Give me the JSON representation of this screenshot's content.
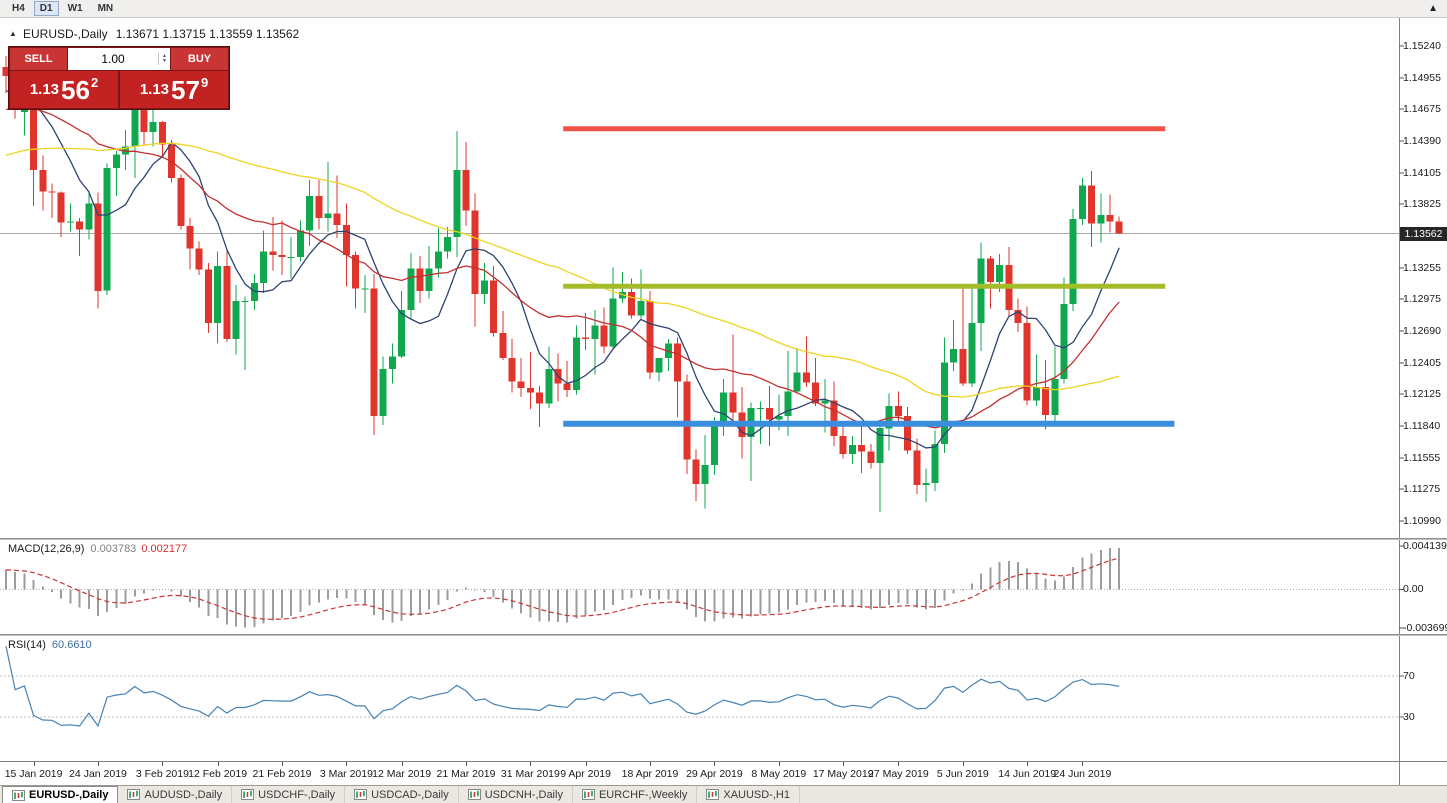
{
  "toolbar": {
    "timeframes": [
      {
        "label": "H4",
        "active": false
      },
      {
        "label": "D1",
        "active": true
      },
      {
        "label": "W1",
        "active": false
      },
      {
        "label": "MN",
        "active": false
      }
    ]
  },
  "icons": {
    "panel_collapse": "▲",
    "volume_spin_up": "▲",
    "volume_spin_down": "▼",
    "toolbar_scroll_up": "▲"
  },
  "chart_header": {
    "symbol": "EURUSD-,Daily",
    "ohlc": "1.13671 1.13715 1.13559 1.13562"
  },
  "one_click": {
    "sell_label": "SELL",
    "buy_label": "BUY",
    "volume": "1.00",
    "sell_price": {
      "base": "1.13",
      "pips": "56",
      "frac": "2"
    },
    "buy_price": {
      "base": "1.13",
      "pips": "57",
      "frac": "9"
    }
  },
  "price_axis": {
    "labels": [
      "1.15240",
      "1.14955",
      "1.14675",
      "1.14390",
      "1.14105",
      "1.13825",
      "1.13255",
      "1.12975",
      "1.12690",
      "1.12405",
      "1.12125",
      "1.11840",
      "1.11555",
      "1.11275",
      "1.10990"
    ],
    "current": "1.13562"
  },
  "macd_panel": {
    "name": "MACD(12,26,9)",
    "values": [
      "0.003783",
      "0.002177"
    ],
    "axis": [
      "0.004139",
      "0.00",
      "-0.003699"
    ]
  },
  "rsi_panel": {
    "name": "RSI(14)",
    "value": "60.6610",
    "levels": [
      "70",
      "30"
    ]
  },
  "date_axis": {
    "labels": [
      {
        "t": "15 Jan 2019",
        "i": 3
      },
      {
        "t": "24 Jan 2019",
        "i": 10
      },
      {
        "t": "3 Feb 2019",
        "i": 17
      },
      {
        "t": "12 Feb 2019",
        "i": 23
      },
      {
        "t": "21 Feb 2019",
        "i": 30
      },
      {
        "t": "3 Mar 2019",
        "i": 37
      },
      {
        "t": "12 Mar 2019",
        "i": 43
      },
      {
        "t": "21 Mar 2019",
        "i": 50
      },
      {
        "t": "31 Mar 2019",
        "i": 57
      },
      {
        "t": "9 Apr 2019",
        "i": 63
      },
      {
        "t": "18 Apr 2019",
        "i": 70
      },
      {
        "t": "29 Apr 2019",
        "i": 77
      },
      {
        "t": "8 May 2019",
        "i": 84
      },
      {
        "t": "17 May 2019",
        "i": 91
      },
      {
        "t": "27 May 2019",
        "i": 97
      },
      {
        "t": "5 Jun 2019",
        "i": 104
      },
      {
        "t": "14 Jun 2019",
        "i": 111
      },
      {
        "t": "24 Jun 2019",
        "i": 117
      }
    ]
  },
  "tabs": [
    {
      "label": "EURUSD-,Daily",
      "active": true
    },
    {
      "label": "AUDUSD-,Daily",
      "active": false
    },
    {
      "label": "USDCHF-,Daily",
      "active": false
    },
    {
      "label": "USDCAD-,Daily",
      "active": false
    },
    {
      "label": "USDCNH-,Daily",
      "active": false
    },
    {
      "label": "EURCHF-,Weekly",
      "active": false
    },
    {
      "label": "XAUUSD-,H1",
      "active": false
    }
  ],
  "chart_data": {
    "type": "candlestick",
    "symbol": "EURUSD-",
    "timeframe": "Daily",
    "current_price": 1.13562,
    "price_max": 1.1524,
    "price_min": 1.1099,
    "colors": {
      "bull": "#10A74F",
      "bear": "#E0352C",
      "current_line": "#A9A9A9"
    },
    "candles": [
      [
        1.1505,
        1.1515,
        1.1482,
        1.1497
      ],
      [
        1.1497,
        1.15,
        1.1459,
        1.1467
      ],
      [
        1.1465,
        1.1482,
        1.1444,
        1.1473
      ],
      [
        1.1473,
        1.149,
        1.1381,
        1.1413
      ],
      [
        1.1413,
        1.1426,
        1.1377,
        1.1394
      ],
      [
        1.1394,
        1.1401,
        1.137,
        1.1393
      ],
      [
        1.1393,
        1.1394,
        1.1353,
        1.1366
      ],
      [
        1.1366,
        1.1383,
        1.1358,
        1.1367
      ],
      [
        1.1367,
        1.137,
        1.1336,
        1.136
      ],
      [
        1.136,
        1.1394,
        1.1351,
        1.1383
      ],
      [
        1.1383,
        1.1393,
        1.1289,
        1.1305
      ],
      [
        1.1305,
        1.1419,
        1.1301,
        1.1415
      ],
      [
        1.1415,
        1.143,
        1.139,
        1.1427
      ],
      [
        1.1427,
        1.1449,
        1.1413,
        1.1434
      ],
      [
        1.1434,
        1.1502,
        1.1406,
        1.1481
      ],
      [
        1.1481,
        1.1514,
        1.1436,
        1.1447
      ],
      [
        1.1447,
        1.1488,
        1.1434,
        1.1456
      ],
      [
        1.1456,
        1.1457,
        1.1424,
        1.1436
      ],
      [
        1.1436,
        1.144,
        1.1402,
        1.1406
      ],
      [
        1.1406,
        1.1409,
        1.136,
        1.1363
      ],
      [
        1.1363,
        1.137,
        1.1324,
        1.1343
      ],
      [
        1.1343,
        1.1349,
        1.1319,
        1.1324
      ],
      [
        1.1324,
        1.133,
        1.1267,
        1.1276
      ],
      [
        1.1276,
        1.134,
        1.1258,
        1.1327
      ],
      [
        1.1327,
        1.1341,
        1.1259,
        1.1262
      ],
      [
        1.1262,
        1.131,
        1.1248,
        1.1296
      ],
      [
        1.1296,
        1.13,
        1.1234,
        1.1296
      ],
      [
        1.1296,
        1.132,
        1.1288,
        1.1312
      ],
      [
        1.1312,
        1.1359,
        1.1303,
        1.134
      ],
      [
        1.134,
        1.1371,
        1.1323,
        1.1337
      ],
      [
        1.1337,
        1.1368,
        1.1319,
        1.1335
      ],
      [
        1.1335,
        1.1353,
        1.1316,
        1.1335
      ],
      [
        1.1335,
        1.1368,
        1.1331,
        1.1359
      ],
      [
        1.1359,
        1.1404,
        1.1345,
        1.139
      ],
      [
        1.139,
        1.1404,
        1.136,
        1.137
      ],
      [
        1.137,
        1.142,
        1.1358,
        1.1374
      ],
      [
        1.1374,
        1.1408,
        1.1352,
        1.1364
      ],
      [
        1.1364,
        1.1383,
        1.1309,
        1.1337
      ],
      [
        1.1337,
        1.134,
        1.1289,
        1.1307
      ],
      [
        1.1307,
        1.1319,
        1.1285,
        1.1307
      ],
      [
        1.1307,
        1.132,
        1.1176,
        1.1193
      ],
      [
        1.1193,
        1.1246,
        1.1185,
        1.1235
      ],
      [
        1.1235,
        1.1258,
        1.1222,
        1.1246
      ],
      [
        1.1246,
        1.1305,
        1.1245,
        1.1288
      ],
      [
        1.1288,
        1.1339,
        1.128,
        1.1325
      ],
      [
        1.1325,
        1.1336,
        1.1294,
        1.1305
      ],
      [
        1.1305,
        1.1345,
        1.1298,
        1.1325
      ],
      [
        1.1325,
        1.1361,
        1.1317,
        1.134
      ],
      [
        1.134,
        1.1362,
        1.1334,
        1.1353
      ],
      [
        1.1353,
        1.1448,
        1.1335,
        1.1413
      ],
      [
        1.1413,
        1.1438,
        1.1363,
        1.1377
      ],
      [
        1.1377,
        1.1392,
        1.1273,
        1.1302
      ],
      [
        1.1302,
        1.133,
        1.1293,
        1.1314
      ],
      [
        1.1314,
        1.1327,
        1.1264,
        1.1267
      ],
      [
        1.1267,
        1.1287,
        1.1243,
        1.1245
      ],
      [
        1.1245,
        1.1262,
        1.1214,
        1.1224
      ],
      [
        1.1224,
        1.1245,
        1.121,
        1.1218
      ],
      [
        1.1218,
        1.125,
        1.1199,
        1.1214
      ],
      [
        1.1214,
        1.122,
        1.1183,
        1.1204
      ],
      [
        1.1204,
        1.1255,
        1.12,
        1.1235
      ],
      [
        1.1235,
        1.1249,
        1.1206,
        1.1222
      ],
      [
        1.1222,
        1.1242,
        1.121,
        1.1216
      ],
      [
        1.1216,
        1.1274,
        1.1212,
        1.1263
      ],
      [
        1.1263,
        1.1285,
        1.1252,
        1.1262
      ],
      [
        1.1262,
        1.1288,
        1.123,
        1.1274
      ],
      [
        1.1274,
        1.129,
        1.1249,
        1.1255
      ],
      [
        1.1255,
        1.1326,
        1.1253,
        1.1298
      ],
      [
        1.1298,
        1.1322,
        1.1294,
        1.1304
      ],
      [
        1.1304,
        1.1316,
        1.128,
        1.1283
      ],
      [
        1.1283,
        1.1324,
        1.128,
        1.1296
      ],
      [
        1.1296,
        1.1305,
        1.1226,
        1.1232
      ],
      [
        1.1232,
        1.1245,
        1.1224,
        1.1245
      ],
      [
        1.1245,
        1.1262,
        1.1233,
        1.1258
      ],
      [
        1.1258,
        1.1263,
        1.1192,
        1.1224
      ],
      [
        1.1224,
        1.123,
        1.1141,
        1.1154
      ],
      [
        1.1154,
        1.1163,
        1.1117,
        1.1132
      ],
      [
        1.1132,
        1.1176,
        1.111,
        1.1149
      ],
      [
        1.1149,
        1.1192,
        1.114,
        1.1184
      ],
      [
        1.1184,
        1.1226,
        1.1175,
        1.1214
      ],
      [
        1.1214,
        1.1266,
        1.1186,
        1.1196
      ],
      [
        1.1196,
        1.1219,
        1.1155,
        1.1174
      ],
      [
        1.1174,
        1.1205,
        1.1135,
        1.12
      ],
      [
        1.12,
        1.1206,
        1.1168,
        1.12
      ],
      [
        1.12,
        1.122,
        1.1166,
        1.119
      ],
      [
        1.119,
        1.1212,
        1.118,
        1.1193
      ],
      [
        1.1193,
        1.1251,
        1.1175,
        1.1215
      ],
      [
        1.1215,
        1.1254,
        1.1213,
        1.1232
      ],
      [
        1.1232,
        1.1264,
        1.1219,
        1.1223
      ],
      [
        1.1223,
        1.1245,
        1.1202,
        1.1204
      ],
      [
        1.1204,
        1.1226,
        1.1178,
        1.1207
      ],
      [
        1.1207,
        1.1224,
        1.1166,
        1.1175
      ],
      [
        1.1175,
        1.1184,
        1.1155,
        1.1159
      ],
      [
        1.1159,
        1.1175,
        1.115,
        1.1167
      ],
      [
        1.1167,
        1.1188,
        1.1142,
        1.1161
      ],
      [
        1.1161,
        1.1168,
        1.1146,
        1.1151
      ],
      [
        1.1151,
        1.1188,
        1.1107,
        1.1182
      ],
      [
        1.1182,
        1.1213,
        1.1162,
        1.1202
      ],
      [
        1.1202,
        1.1215,
        1.1187,
        1.1193
      ],
      [
        1.1193,
        1.1201,
        1.1159,
        1.1162
      ],
      [
        1.1162,
        1.1173,
        1.1123,
        1.1131
      ],
      [
        1.1131,
        1.1146,
        1.1116,
        1.1133
      ],
      [
        1.1133,
        1.118,
        1.1126,
        1.1168
      ],
      [
        1.1168,
        1.1263,
        1.116,
        1.1241
      ],
      [
        1.1241,
        1.1279,
        1.1233,
        1.1253
      ],
      [
        1.1253,
        1.1307,
        1.122,
        1.1222
      ],
      [
        1.1222,
        1.1309,
        1.1219,
        1.1276
      ],
      [
        1.1276,
        1.1348,
        1.1251,
        1.1334
      ],
      [
        1.1334,
        1.1336,
        1.1289,
        1.1313
      ],
      [
        1.1313,
        1.1338,
        1.1304,
        1.1328
      ],
      [
        1.1328,
        1.1344,
        1.1282,
        1.1288
      ],
      [
        1.1288,
        1.1298,
        1.1268,
        1.1276
      ],
      [
        1.1276,
        1.1291,
        1.1203,
        1.1207
      ],
      [
        1.1207,
        1.1248,
        1.1202,
        1.1219
      ],
      [
        1.1219,
        1.1243,
        1.1181,
        1.1194
      ],
      [
        1.1194,
        1.1255,
        1.1187,
        1.1226
      ],
      [
        1.1226,
        1.1317,
        1.1222,
        1.1293
      ],
      [
        1.1293,
        1.1378,
        1.1287,
        1.1369
      ],
      [
        1.1369,
        1.1406,
        1.1364,
        1.1399
      ],
      [
        1.1399,
        1.1412,
        1.1344,
        1.1365
      ],
      [
        1.1365,
        1.1392,
        1.1348,
        1.1373
      ],
      [
        1.1373,
        1.1391,
        1.1357,
        1.1367
      ],
      [
        1.13671,
        1.13715,
        1.13559,
        1.13562
      ]
    ],
    "moving_averages": [
      {
        "period": 8,
        "color": "#2E4372"
      },
      {
        "period": 20,
        "color": "#C13030"
      },
      {
        "period": 50,
        "color": "#EFD320"
      }
    ],
    "horizontal_lines": [
      {
        "price": 1.145,
        "color": "#F25248",
        "width": 5,
        "from_index": 61,
        "to_index": 126
      },
      {
        "price": 1.1309,
        "color": "#A4BB2A",
        "width": 5,
        "from_index": 61,
        "to_index": 126
      },
      {
        "price": 1.1186,
        "color": "#3B8EDE",
        "width": 6,
        "from_index": 61,
        "to_index": 127
      }
    ],
    "macd": {
      "fast": 12,
      "slow": 26,
      "signal": 9,
      "value": 0.003783,
      "signal_value": 0.002177,
      "scale_max": 0.004139,
      "scale_min": -0.003699,
      "histogram_color": "#9C9C9C",
      "signal_color": "#CC3333"
    },
    "rsi": {
      "period": 14,
      "value": 60.661,
      "lev": [
        70,
        30
      ],
      "color": "#4682B4",
      "level_color": "#BDBDBD"
    }
  }
}
